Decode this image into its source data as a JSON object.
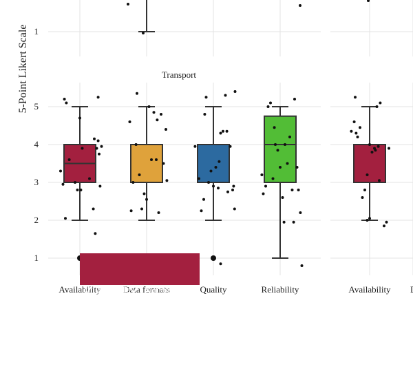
{
  "chart_data": {
    "type": "box",
    "ylabel": "5-Point Likert Scale",
    "yticks": [
      1,
      2,
      3,
      4,
      5
    ],
    "ylim": [
      0.55,
      5.45
    ],
    "grid": true,
    "panel_title": "Transport",
    "categories": [
      "Availability",
      "Data formats",
      "Quality",
      "Reliability"
    ],
    "colors": [
      "#a3203f",
      "#dfa23b",
      "#2c6aa0",
      "#52bd36"
    ],
    "boxes": [
      {
        "min": 2,
        "q1": 3,
        "median": 3.5,
        "q3": 4,
        "max": 5,
        "outliers": [
          1
        ]
      },
      {
        "min": 2,
        "q1": 3,
        "median": 3,
        "q3": 4,
        "max": 5,
        "outliers": []
      },
      {
        "min": 2,
        "q1": 3,
        "median": 3,
        "q3": 4,
        "max": 5,
        "outliers": [
          1
        ]
      },
      {
        "min": 1,
        "q1": 3,
        "median": 4,
        "q3": 4.75,
        "max": 5,
        "outliers": []
      }
    ],
    "points": [
      [
        [
          -0.4,
          3.3
        ],
        [
          -0.35,
          2.95
        ],
        [
          -0.32,
          5.2
        ],
        [
          -0.28,
          5.1
        ],
        [
          -0.3,
          2.05
        ],
        [
          -0.22,
          3.6
        ],
        [
          -0.1,
          3.0
        ],
        [
          -0.05,
          2.8
        ],
        [
          0.0,
          4.7
        ],
        [
          0.02,
          2.8
        ],
        [
          0.05,
          3.9
        ],
        [
          0.1,
          0.7
        ],
        [
          0.28,
          2.3
        ],
        [
          0.3,
          4.15
        ],
        [
          0.32,
          1.65
        ],
        [
          0.35,
          3.9
        ],
        [
          0.38,
          4.1
        ],
        [
          0.4,
          3.75
        ],
        [
          0.42,
          2.9
        ],
        [
          0.45,
          3.95
        ],
        [
          0.38,
          5.25
        ],
        [
          0.2,
          3.1
        ]
      ],
      [
        [
          -0.35,
          4.6
        ],
        [
          -0.32,
          2.25
        ],
        [
          -0.28,
          3.0
        ],
        [
          -0.22,
          4.0
        ],
        [
          -0.2,
          5.35
        ],
        [
          -0.15,
          3.2
        ],
        [
          -0.1,
          2.3
        ],
        [
          -0.05,
          2.7
        ],
        [
          0.0,
          2.55
        ],
        [
          0.05,
          5.0
        ],
        [
          0.1,
          3.6
        ],
        [
          0.15,
          4.85
        ],
        [
          0.2,
          3.6
        ],
        [
          0.22,
          4.65
        ],
        [
          0.25,
          2.2
        ],
        [
          0.3,
          4.8
        ],
        [
          0.35,
          3.5
        ],
        [
          0.4,
          4.4
        ],
        [
          0.42,
          3.05
        ]
      ],
      [
        [
          -0.38,
          3.95
        ],
        [
          -0.3,
          3.1
        ],
        [
          -0.25,
          2.25
        ],
        [
          -0.2,
          2.55
        ],
        [
          -0.18,
          4.8
        ],
        [
          -0.15,
          5.25
        ],
        [
          -0.1,
          3.0
        ],
        [
          -0.05,
          3.3
        ],
        [
          0.0,
          2.9
        ],
        [
          0.05,
          3.4
        ],
        [
          0.1,
          2.85
        ],
        [
          0.12,
          3.55
        ],
        [
          0.15,
          4.3
        ],
        [
          0.2,
          4.35
        ],
        [
          0.25,
          5.3
        ],
        [
          0.28,
          4.35
        ],
        [
          0.3,
          2.75
        ],
        [
          0.35,
          3.95
        ],
        [
          0.4,
          2.8
        ],
        [
          0.42,
          2.9
        ],
        [
          0.44,
          2.3
        ],
        [
          0.45,
          5.4
        ],
        [
          0.15,
          0.85
        ]
      ],
      [
        [
          -0.38,
          3.2
        ],
        [
          -0.35,
          2.7
        ],
        [
          -0.3,
          2.9
        ],
        [
          -0.25,
          5.0
        ],
        [
          -0.2,
          5.1
        ],
        [
          -0.15,
          3.1
        ],
        [
          -0.12,
          4.45
        ],
        [
          -0.1,
          4.0
        ],
        [
          -0.05,
          3.85
        ],
        [
          0.0,
          3.4
        ],
        [
          0.05,
          2.6
        ],
        [
          0.08,
          1.95
        ],
        [
          0.1,
          4.0
        ],
        [
          0.15,
          3.5
        ],
        [
          0.2,
          4.2
        ],
        [
          0.25,
          2.8
        ],
        [
          0.28,
          1.95
        ],
        [
          0.3,
          5.2
        ],
        [
          0.35,
          3.4
        ],
        [
          0.38,
          2.8
        ],
        [
          0.42,
          2.2
        ],
        [
          0.45,
          0.8
        ]
      ]
    ],
    "right_panel": {
      "categories": [
        "Availability",
        "D"
      ],
      "boxes": [
        {
          "min": 2,
          "q1": 3,
          "median": 4,
          "q3": 4,
          "max": 5,
          "outliers": []
        }
      ],
      "colors": [
        "#a3203f"
      ],
      "points": [
        [
          [
            -0.38,
            4.35
          ],
          [
            -0.32,
            4.6
          ],
          [
            -0.3,
            5.25
          ],
          [
            -0.28,
            4.3
          ],
          [
            -0.25,
            4.2
          ],
          [
            -0.2,
            4.45
          ],
          [
            -0.15,
            2.6
          ],
          [
            -0.1,
            2.8
          ],
          [
            -0.05,
            3.2
          ],
          [
            0.0,
            2.05
          ],
          [
            0.0,
            4.0
          ],
          [
            0.05,
            3.8
          ],
          [
            0.1,
            3.9
          ],
          [
            0.12,
            3.85
          ],
          [
            0.15,
            5.0
          ],
          [
            0.18,
            3.95
          ],
          [
            0.2,
            3.05
          ],
          [
            0.22,
            5.1
          ],
          [
            0.3,
            1.85
          ],
          [
            0.35,
            1.95
          ],
          [
            0.4,
            3.9
          ],
          [
            -0.05,
            2.0
          ]
        ]
      ]
    },
    "top_panel": {
      "yticks": [
        1
      ],
      "boxes": [
        {
          "min": 1,
          "max": 2
        }
      ],
      "points": [
        [
          0.42,
          1.05
        ],
        [
          0.45,
          1.0
        ]
      ],
      "right_points": [
        [
          0.0,
          2.0
        ]
      ]
    }
  },
  "tooltip": {
    "line1": "Municiaplity:  Akhmeta",
    "line2": "Avarage: 1",
    "color": "#a3203f"
  }
}
